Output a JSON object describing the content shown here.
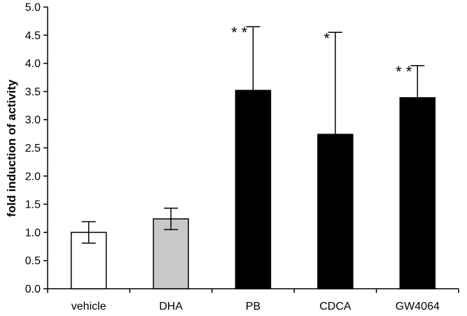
{
  "chart_data": {
    "type": "bar",
    "title": "",
    "xlabel": "",
    "ylabel": "fold induction of activity",
    "ylim": [
      0,
      5.0
    ],
    "y_ticks": [
      "0.0",
      "0.5",
      "1.0",
      "1.5",
      "2.0",
      "2.5",
      "3.0",
      "3.5",
      "4.0",
      "4.5",
      "5.0"
    ],
    "categories": [
      "vehicle",
      "DHA",
      "PB",
      "CDCA",
      "GW4064"
    ],
    "values": [
      1.0,
      1.24,
      3.52,
      2.74,
      3.39
    ],
    "errors": [
      0.19,
      0.19,
      1.13,
      1.81,
      0.57
    ],
    "significance": [
      "",
      "",
      "* *",
      "*",
      "* *"
    ],
    "bar_colors": [
      "#ffffff",
      "#c8c8c8",
      "#000000",
      "#000000",
      "#000000"
    ],
    "grid": false,
    "legend": "none"
  }
}
